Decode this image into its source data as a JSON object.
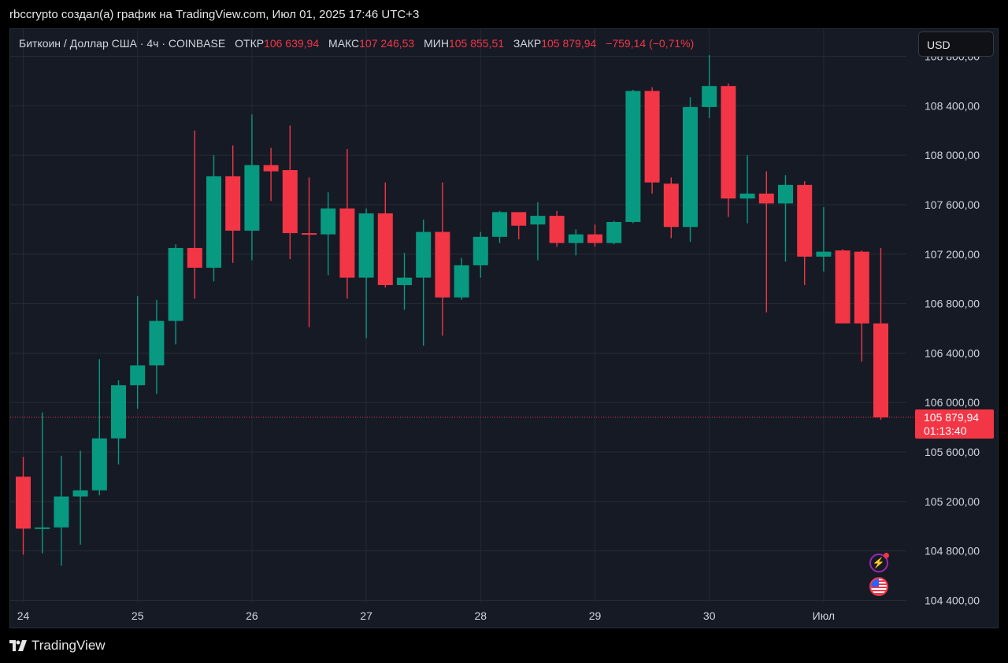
{
  "header": {
    "caption": "rbccrypto создал(а) график на TradingView.com, Июл 01, 2025 17:46 UTC+3"
  },
  "legend": {
    "symbol": "Биткоин / Доллар США · 4ч · COINBASE",
    "open_label": "ОТКР",
    "open_value": "106 639,94",
    "high_label": "МАКС",
    "high_value": "107 246,53",
    "low_label": "МИН",
    "low_value": "105 855,51",
    "close_label": "ЗАКР",
    "close_value": "105 879,94",
    "change": "−759,14 (−0,71%)"
  },
  "currency_button": {
    "label": "USD"
  },
  "last_price": {
    "value": "105 879,94",
    "countdown": "01:13:40"
  },
  "footer": {
    "brand": "TradingView"
  },
  "icons": [
    "bolt-icon",
    "us-flag-icon"
  ],
  "colors": {
    "up": "#089981",
    "down": "#f23645",
    "background": "#161a25",
    "grid": "#262a35"
  },
  "chart_data": {
    "type": "candlestick",
    "interval": "4h",
    "x_tick_labels": [
      "24",
      "25",
      "26",
      "27",
      "28",
      "29",
      "30",
      "Июл"
    ],
    "y_tick_labels": [
      "108 800,00",
      "108 400,00",
      "108 000,00",
      "107 600,00",
      "107 200,00",
      "106 800,00",
      "106 400,00",
      "106 000,00",
      "105 600,00",
      "105 200,00",
      "104 800,00",
      "104 400,00"
    ],
    "ylim": [
      104320,
      109020
    ],
    "grid": true,
    "last_price": 105880,
    "candles": [
      {
        "t": "24 00:00",
        "o": 105400,
        "h": 105560,
        "l": 104770,
        "c": 104980
      },
      {
        "t": "24 04:00",
        "o": 104980,
        "h": 105920,
        "l": 104780,
        "c": 104990
      },
      {
        "t": "24 08:00",
        "o": 104990,
        "h": 105570,
        "l": 104680,
        "c": 105240
      },
      {
        "t": "24 12:00",
        "o": 105240,
        "h": 105610,
        "l": 104850,
        "c": 105290
      },
      {
        "t": "24 16:00",
        "o": 105290,
        "h": 106350,
        "l": 105250,
        "c": 105710
      },
      {
        "t": "24 20:00",
        "o": 105710,
        "h": 106180,
        "l": 105500,
        "c": 106140
      },
      {
        "t": "25 00:00",
        "o": 106140,
        "h": 106860,
        "l": 105950,
        "c": 106300
      },
      {
        "t": "25 04:00",
        "o": 106300,
        "h": 106830,
        "l": 106070,
        "c": 106660
      },
      {
        "t": "25 08:00",
        "o": 106660,
        "h": 107280,
        "l": 106470,
        "c": 107250
      },
      {
        "t": "25 12:00",
        "o": 107250,
        "h": 108200,
        "l": 106840,
        "c": 107090
      },
      {
        "t": "25 16:00",
        "o": 107090,
        "h": 108000,
        "l": 106980,
        "c": 107830
      },
      {
        "t": "25 20:00",
        "o": 107830,
        "h": 108080,
        "l": 107130,
        "c": 107390
      },
      {
        "t": "26 00:00",
        "o": 107390,
        "h": 108330,
        "l": 107150,
        "c": 107920
      },
      {
        "t": "26 04:00",
        "o": 107920,
        "h": 108060,
        "l": 107630,
        "c": 107870
      },
      {
        "t": "26 08:00",
        "o": 107880,
        "h": 108240,
        "l": 107160,
        "c": 107370
      },
      {
        "t": "26 12:00",
        "o": 107370,
        "h": 107820,
        "l": 106610,
        "c": 107360
      },
      {
        "t": "26 16:00",
        "o": 107360,
        "h": 107700,
        "l": 107030,
        "c": 107570
      },
      {
        "t": "26 20:00",
        "o": 107570,
        "h": 108050,
        "l": 106840,
        "c": 107010
      },
      {
        "t": "27 00:00",
        "o": 107010,
        "h": 107570,
        "l": 106520,
        "c": 107530
      },
      {
        "t": "27 04:00",
        "o": 107530,
        "h": 107780,
        "l": 106930,
        "c": 106950
      },
      {
        "t": "27 08:00",
        "o": 106950,
        "h": 107210,
        "l": 106750,
        "c": 107010
      },
      {
        "t": "27 12:00",
        "o": 107010,
        "h": 107480,
        "l": 106460,
        "c": 107380
      },
      {
        "t": "27 16:00",
        "o": 107380,
        "h": 107780,
        "l": 106540,
        "c": 106850
      },
      {
        "t": "27 20:00",
        "o": 106850,
        "h": 107170,
        "l": 106830,
        "c": 107110
      },
      {
        "t": "28 00:00",
        "o": 107110,
        "h": 107380,
        "l": 107010,
        "c": 107340
      },
      {
        "t": "28 04:00",
        "o": 107340,
        "h": 107550,
        "l": 107290,
        "c": 107540
      },
      {
        "t": "28 08:00",
        "o": 107540,
        "h": 107520,
        "l": 107320,
        "c": 107430
      },
      {
        "t": "28 12:00",
        "o": 107440,
        "h": 107620,
        "l": 107150,
        "c": 107510
      },
      {
        "t": "28 16:00",
        "o": 107510,
        "h": 107550,
        "l": 107260,
        "c": 107290
      },
      {
        "t": "28 20:00",
        "o": 107290,
        "h": 107400,
        "l": 107190,
        "c": 107360
      },
      {
        "t": "29 00:00",
        "o": 107360,
        "h": 107440,
        "l": 107260,
        "c": 107290
      },
      {
        "t": "29 04:00",
        "o": 107290,
        "h": 107470,
        "l": 107280,
        "c": 107460
      },
      {
        "t": "29 08:00",
        "o": 107460,
        "h": 108530,
        "l": 107450,
        "c": 108520
      },
      {
        "t": "29 12:00",
        "o": 108520,
        "h": 108550,
        "l": 107690,
        "c": 107780
      },
      {
        "t": "29 16:00",
        "o": 107770,
        "h": 107820,
        "l": 107330,
        "c": 107420
      },
      {
        "t": "29 20:00",
        "o": 107420,
        "h": 108470,
        "l": 107300,
        "c": 108390
      },
      {
        "t": "30 00:00",
        "o": 108390,
        "h": 108810,
        "l": 108300,
        "c": 108560
      },
      {
        "t": "30 04:00",
        "o": 108560,
        "h": 108580,
        "l": 107500,
        "c": 107650
      },
      {
        "t": "30 08:00",
        "o": 107650,
        "h": 108000,
        "l": 107450,
        "c": 107690
      },
      {
        "t": "30 12:00",
        "o": 107690,
        "h": 107870,
        "l": 106730,
        "c": 107610
      },
      {
        "t": "30 16:00",
        "o": 107610,
        "h": 107840,
        "l": 107140,
        "c": 107760
      },
      {
        "t": "30 20:00",
        "o": 107760,
        "h": 107790,
        "l": 106950,
        "c": 107180
      },
      {
        "t": "Июл 00:00",
        "o": 107180,
        "h": 107580,
        "l": 107060,
        "c": 107220
      },
      {
        "t": "Июл 04:00",
        "o": 107230,
        "h": 107240,
        "l": 106650,
        "c": 106640
      },
      {
        "t": "Июл 08:00",
        "o": 107220,
        "h": 107230,
        "l": 106330,
        "c": 106640
      },
      {
        "t": "Июл 12:00",
        "o": 106640,
        "h": 107250,
        "l": 105860,
        "c": 105880
      }
    ]
  }
}
